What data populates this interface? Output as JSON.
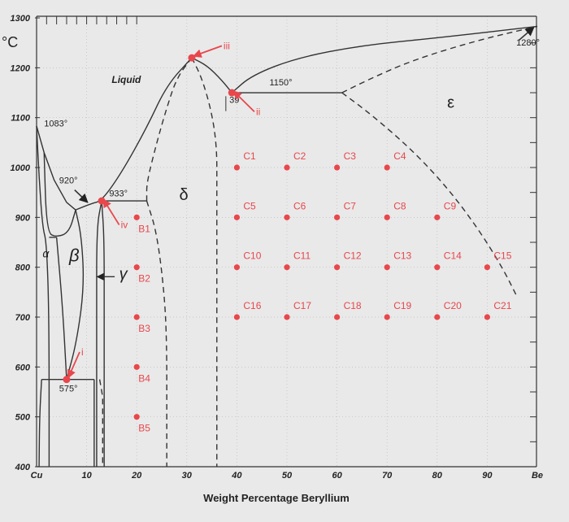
{
  "chart_data": {
    "type": "phase-diagram",
    "xlabel": "Weight Percentage Beryllium",
    "ylabel": "°C",
    "xlim": [
      0,
      100
    ],
    "ylim": [
      400,
      1300
    ],
    "x_ticks": [
      {
        "v": 0,
        "label": "Cu"
      },
      {
        "v": 10,
        "label": "10"
      },
      {
        "v": 20,
        "label": "20"
      },
      {
        "v": 30,
        "label": "30"
      },
      {
        "v": 40,
        "label": "40"
      },
      {
        "v": 50,
        "label": "50"
      },
      {
        "v": 60,
        "label": "60"
      },
      {
        "v": 70,
        "label": "70"
      },
      {
        "v": 80,
        "label": "80"
      },
      {
        "v": 90,
        "label": "90"
      },
      {
        "v": 100,
        "label": "Be"
      }
    ],
    "y_ticks": [
      {
        "v": 400,
        "label": "400"
      },
      {
        "v": 500,
        "label": "500"
      },
      {
        "v": 600,
        "label": "600"
      },
      {
        "v": 700,
        "label": "700"
      },
      {
        "v": 800,
        "label": "800"
      },
      {
        "v": 900,
        "label": "900"
      },
      {
        "v": 1000,
        "label": "1000"
      },
      {
        "v": 1100,
        "label": "1100"
      },
      {
        "v": 1200,
        "label": "1200"
      },
      {
        "v": 1300,
        "label": "1300"
      }
    ],
    "phases": [
      {
        "label": "Liquid",
        "x": 15,
        "y": 1170
      },
      {
        "label": "α",
        "x": 1.2,
        "y": 820
      },
      {
        "label": "β",
        "x": 6.5,
        "y": 812
      },
      {
        "label": "γ",
        "x": 16.5,
        "y": 776
      },
      {
        "label": "δ",
        "x": 28.5,
        "y": 935
      },
      {
        "label": "ε",
        "x": 82,
        "y": 1120
      }
    ],
    "temperature_labels": [
      {
        "label": "1083°",
        "x": 1.5,
        "y": 1082
      },
      {
        "label": "920°",
        "x": 4.5,
        "y": 968
      },
      {
        "label": "933°",
        "x": 14.5,
        "y": 942
      },
      {
        "label": "1150°",
        "x": 46.5,
        "y": 1165
      },
      {
        "label": "1280°",
        "x": 95.8,
        "y": 1245
      },
      {
        "label": "575°",
        "x": 4.5,
        "y": 551
      },
      {
        "label": "39",
        "x": 38.5,
        "y": 1130
      }
    ],
    "annotations": [
      {
        "label": "i",
        "point": [
          6,
          575
        ],
        "tip": [
          8.6,
          630
        ]
      },
      {
        "label": "ii",
        "point": [
          39,
          1150
        ],
        "tip": [
          43.5,
          1112
        ]
      },
      {
        "label": "iii",
        "point": [
          31,
          1220
        ],
        "tip": [
          37,
          1244
        ]
      },
      {
        "label": "iv",
        "point": [
          13,
          933
        ],
        "tip": [
          16.5,
          885
        ]
      }
    ],
    "points": [
      {
        "label": "C1",
        "x": 40,
        "y": 1000
      },
      {
        "label": "C2",
        "x": 50,
        "y": 1000
      },
      {
        "label": "C3",
        "x": 60,
        "y": 1000
      },
      {
        "label": "C4",
        "x": 70,
        "y": 1000
      },
      {
        "label": "C5",
        "x": 40,
        "y": 900
      },
      {
        "label": "C6",
        "x": 50,
        "y": 900
      },
      {
        "label": "C7",
        "x": 60,
        "y": 900
      },
      {
        "label": "C8",
        "x": 70,
        "y": 900
      },
      {
        "label": "C9",
        "x": 80,
        "y": 900
      },
      {
        "label": "C10",
        "x": 40,
        "y": 800
      },
      {
        "label": "C11",
        "x": 50,
        "y": 800
      },
      {
        "label": "C12",
        "x": 60,
        "y": 800
      },
      {
        "label": "C13",
        "x": 70,
        "y": 800
      },
      {
        "label": "C14",
        "x": 80,
        "y": 800
      },
      {
        "label": "C15",
        "x": 90,
        "y": 800
      },
      {
        "label": "C16",
        "x": 40,
        "y": 700
      },
      {
        "label": "C17",
        "x": 50,
        "y": 700
      },
      {
        "label": "C18",
        "x": 60,
        "y": 700
      },
      {
        "label": "C19",
        "x": 70,
        "y": 700
      },
      {
        "label": "C20",
        "x": 80,
        "y": 700
      },
      {
        "label": "C21",
        "x": 90,
        "y": 700
      },
      {
        "label": "B1",
        "x": 20,
        "y": 900
      },
      {
        "label": "B2",
        "x": 20,
        "y": 800
      },
      {
        "label": "B3",
        "x": 20,
        "y": 700
      },
      {
        "label": "B4",
        "x": 20,
        "y": 600
      },
      {
        "label": "B5",
        "x": 20,
        "y": 500
      }
    ],
    "special_points": [
      {
        "x": 6,
        "y": 575
      },
      {
        "x": 13,
        "y": 933
      },
      {
        "x": 31,
        "y": 1220
      },
      {
        "x": 39,
        "y": 1150
      }
    ]
  }
}
